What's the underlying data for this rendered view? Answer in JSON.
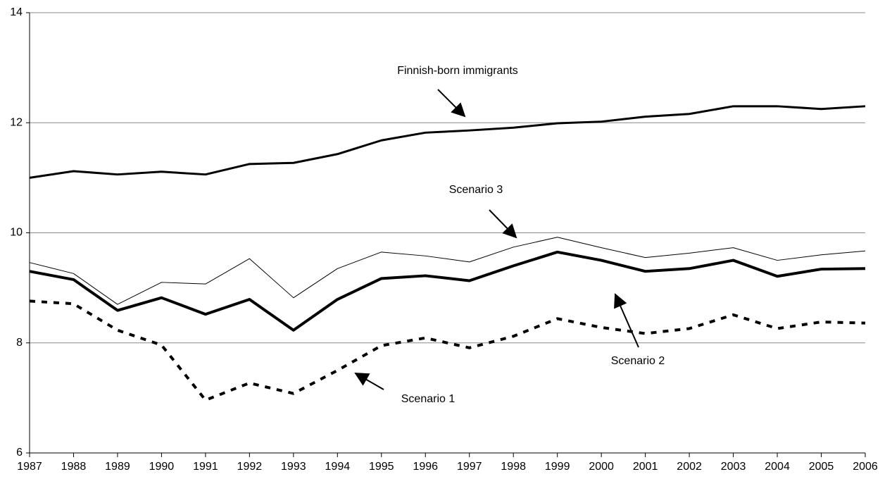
{
  "chart_data": {
    "type": "line",
    "x": [
      1987,
      1988,
      1989,
      1990,
      1991,
      1992,
      1993,
      1994,
      1995,
      1996,
      1997,
      1998,
      1999,
      2000,
      2001,
      2002,
      2003,
      2004,
      2005,
      2006
    ],
    "xlim": [
      1987,
      2006
    ],
    "xticks": [
      1987,
      1988,
      1989,
      1990,
      1991,
      1992,
      1993,
      1994,
      1995,
      1996,
      1997,
      1998,
      1999,
      2000,
      2001,
      2002,
      2003,
      2004,
      2005,
      2006
    ],
    "ylim": [
      6,
      14
    ],
    "yticks": [
      6,
      8,
      10,
      12,
      14
    ],
    "grid": true,
    "series": [
      {
        "name": "Finnish-born immigrants",
        "color": "#000000",
        "style": "medium",
        "values": [
          11.0,
          11.12,
          11.06,
          11.11,
          11.06,
          11.25,
          11.27,
          11.43,
          11.68,
          11.82,
          11.86,
          11.91,
          11.99,
          12.02,
          12.11,
          12.16,
          12.3,
          12.3,
          12.25,
          12.3
        ]
      },
      {
        "name": "Scenario 3",
        "color": "#000000",
        "style": "thin",
        "values": [
          9.46,
          9.26,
          8.7,
          9.1,
          9.07,
          9.53,
          8.82,
          9.35,
          9.65,
          9.58,
          9.47,
          9.74,
          9.92,
          9.73,
          9.55,
          9.63,
          9.73,
          9.5,
          9.6,
          9.67
        ]
      },
      {
        "name": "Scenario 2",
        "color": "#000000",
        "style": "bold",
        "values": [
          9.3,
          9.15,
          8.59,
          8.82,
          8.52,
          8.79,
          8.23,
          8.79,
          9.17,
          9.22,
          9.13,
          9.4,
          9.65,
          9.5,
          9.3,
          9.35,
          9.5,
          9.21,
          9.34,
          9.35
        ]
      },
      {
        "name": "Scenario 1",
        "color": "#000000",
        "style": "dashed",
        "values": [
          8.76,
          8.71,
          8.23,
          7.96,
          6.96,
          7.27,
          7.08,
          7.5,
          7.95,
          8.09,
          7.91,
          8.12,
          8.44,
          8.28,
          8.17,
          8.26,
          8.51,
          8.26,
          8.38,
          8.36
        ]
      }
    ]
  }
}
